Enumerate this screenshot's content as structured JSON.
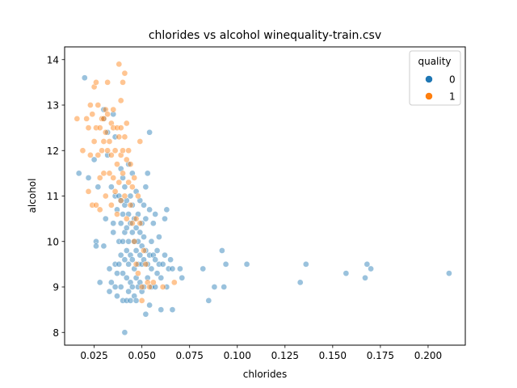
{
  "chart_data": {
    "type": "scatter",
    "title": "chlorides vs alcohol winequality-train.csv",
    "xlabel": "chlorides",
    "ylabel": "alcohol",
    "xlim": [
      0.0095,
      0.2195
    ],
    "ylim": [
      7.72,
      14.28
    ],
    "xticks": [
      0.025,
      0.05,
      0.075,
      0.1,
      0.125,
      0.15,
      0.175,
      0.2
    ],
    "xtick_labels": [
      "0.025",
      "0.050",
      "0.075",
      "0.100",
      "0.125",
      "0.150",
      "0.175",
      "0.200"
    ],
    "yticks": [
      8,
      9,
      10,
      11,
      12,
      13,
      14
    ],
    "ytick_labels": [
      "8",
      "9",
      "10",
      "11",
      "12",
      "13",
      "14"
    ],
    "grid": false,
    "legend": {
      "title": "quality",
      "placement": "top-right"
    },
    "series": [
      {
        "name": "0",
        "color": "#1f77b4",
        "points": [
          [
            0.017,
            11.5
          ],
          [
            0.02,
            13.6
          ],
          [
            0.022,
            11.4
          ],
          [
            0.025,
            11.8
          ],
          [
            0.026,
            10.0
          ],
          [
            0.026,
            9.9
          ],
          [
            0.027,
            11.2
          ],
          [
            0.028,
            9.1
          ],
          [
            0.03,
            12.9
          ],
          [
            0.03,
            12.7
          ],
          [
            0.03,
            9.9
          ],
          [
            0.031,
            10.5
          ],
          [
            0.032,
            12.4
          ],
          [
            0.032,
            11.9
          ],
          [
            0.033,
            8.9
          ],
          [
            0.033,
            9.4
          ],
          [
            0.034,
            11.2
          ],
          [
            0.034,
            9.1
          ],
          [
            0.035,
            12.8
          ],
          [
            0.035,
            10.4
          ],
          [
            0.035,
            10.2
          ],
          [
            0.036,
            12.3
          ],
          [
            0.036,
            11.0
          ],
          [
            0.036,
            9.5
          ],
          [
            0.036,
            9.0
          ],
          [
            0.037,
            10.7
          ],
          [
            0.037,
            9.3
          ],
          [
            0.037,
            8.8
          ],
          [
            0.038,
            11.0
          ],
          [
            0.038,
            10.0
          ],
          [
            0.038,
            9.5
          ],
          [
            0.039,
            11.6
          ],
          [
            0.039,
            10.9
          ],
          [
            0.039,
            10.4
          ],
          [
            0.039,
            9.7
          ],
          [
            0.039,
            9.0
          ],
          [
            0.04,
            11.4
          ],
          [
            0.04,
            10.6
          ],
          [
            0.04,
            10.0
          ],
          [
            0.04,
            9.3
          ],
          [
            0.04,
            8.7
          ],
          [
            0.041,
            11.2
          ],
          [
            0.041,
            10.8
          ],
          [
            0.041,
            10.2
          ],
          [
            0.041,
            9.6
          ],
          [
            0.041,
            8.0
          ],
          [
            0.042,
            10.9
          ],
          [
            0.042,
            10.3
          ],
          [
            0.042,
            9.8
          ],
          [
            0.042,
            9.2
          ],
          [
            0.042,
            8.7
          ],
          [
            0.043,
            11.7
          ],
          [
            0.043,
            10.6
          ],
          [
            0.043,
            10.0
          ],
          [
            0.043,
            9.5
          ],
          [
            0.043,
            8.9
          ],
          [
            0.044,
            11.0
          ],
          [
            0.044,
            10.4
          ],
          [
            0.044,
            9.7
          ],
          [
            0.044,
            9.1
          ],
          [
            0.044,
            8.7
          ],
          [
            0.045,
            11.5
          ],
          [
            0.045,
            10.8
          ],
          [
            0.045,
            10.2
          ],
          [
            0.045,
            9.6
          ],
          [
            0.045,
            9.0
          ],
          [
            0.046,
            10.5
          ],
          [
            0.046,
            10.0
          ],
          [
            0.046,
            9.4
          ],
          [
            0.046,
            8.8
          ],
          [
            0.047,
            11.1
          ],
          [
            0.047,
            10.3
          ],
          [
            0.047,
            9.8
          ],
          [
            0.047,
            9.2
          ],
          [
            0.047,
            8.7
          ],
          [
            0.048,
            10.6
          ],
          [
            0.048,
            10.0
          ],
          [
            0.048,
            9.5
          ],
          [
            0.048,
            9.0
          ],
          [
            0.049,
            10.9
          ],
          [
            0.049,
            10.2
          ],
          [
            0.049,
            9.7
          ],
          [
            0.049,
            9.1
          ],
          [
            0.05,
            10.4
          ],
          [
            0.05,
            9.9
          ],
          [
            0.05,
            9.5
          ],
          [
            0.05,
            8.9
          ],
          [
            0.051,
            10.8
          ],
          [
            0.051,
            10.1
          ],
          [
            0.051,
            9.6
          ],
          [
            0.051,
            9.0
          ],
          [
            0.052,
            11.2
          ],
          [
            0.052,
            10.5
          ],
          [
            0.052,
            9.8
          ],
          [
            0.052,
            8.4
          ],
          [
            0.053,
            11.5
          ],
          [
            0.053,
            9.5
          ],
          [
            0.053,
            9.2
          ],
          [
            0.054,
            12.4
          ],
          [
            0.054,
            10.7
          ],
          [
            0.054,
            9.7
          ],
          [
            0.054,
            8.6
          ],
          [
            0.055,
            10.0
          ],
          [
            0.055,
            9.4
          ],
          [
            0.055,
            9.0
          ],
          [
            0.056,
            10.4
          ],
          [
            0.056,
            9.7
          ],
          [
            0.057,
            10.6
          ],
          [
            0.057,
            9.6
          ],
          [
            0.057,
            9.0
          ],
          [
            0.058,
            9.8
          ],
          [
            0.058,
            9.3
          ],
          [
            0.059,
            10.1
          ],
          [
            0.059,
            9.5
          ],
          [
            0.06,
            8.5
          ],
          [
            0.06,
            9.2
          ],
          [
            0.061,
            9.5
          ],
          [
            0.062,
            10.5
          ],
          [
            0.062,
            9.7
          ],
          [
            0.063,
            10.7
          ],
          [
            0.063,
            9.0
          ],
          [
            0.064,
            9.4
          ],
          [
            0.065,
            9.6
          ],
          [
            0.066,
            8.5
          ],
          [
            0.066,
            9.4
          ],
          [
            0.07,
            9.4
          ],
          [
            0.071,
            9.2
          ],
          [
            0.082,
            9.4
          ],
          [
            0.085,
            8.7
          ],
          [
            0.088,
            9.0
          ],
          [
            0.092,
            9.8
          ],
          [
            0.093,
            9.0
          ],
          [
            0.094,
            9.5
          ],
          [
            0.105,
            9.5
          ],
          [
            0.133,
            9.1
          ],
          [
            0.136,
            9.5
          ],
          [
            0.157,
            9.3
          ],
          [
            0.167,
            9.2
          ],
          [
            0.168,
            9.5
          ],
          [
            0.17,
            9.4
          ],
          [
            0.211,
            9.3
          ]
        ]
      },
      {
        "name": "1",
        "color": "#ff7f0e",
        "points": [
          [
            0.016,
            12.7
          ],
          [
            0.019,
            12.0
          ],
          [
            0.021,
            12.7
          ],
          [
            0.022,
            11.1
          ],
          [
            0.022,
            12.5
          ],
          [
            0.023,
            13.0
          ],
          [
            0.023,
            11.9
          ],
          [
            0.024,
            12.8
          ],
          [
            0.024,
            10.8
          ],
          [
            0.025,
            13.4
          ],
          [
            0.025,
            12.2
          ],
          [
            0.026,
            13.5
          ],
          [
            0.026,
            12.5
          ],
          [
            0.026,
            10.8
          ],
          [
            0.027,
            11.9
          ],
          [
            0.027,
            13.0
          ],
          [
            0.028,
            12.5
          ],
          [
            0.028,
            11.4
          ],
          [
            0.028,
            10.7
          ],
          [
            0.029,
            12.7
          ],
          [
            0.029,
            12.0
          ],
          [
            0.03,
            12.7
          ],
          [
            0.03,
            12.2
          ],
          [
            0.03,
            11.5
          ],
          [
            0.031,
            12.9
          ],
          [
            0.031,
            12.4
          ],
          [
            0.031,
            11.0
          ],
          [
            0.032,
            13.5
          ],
          [
            0.032,
            12.8
          ],
          [
            0.032,
            12.0
          ],
          [
            0.033,
            12.2
          ],
          [
            0.033,
            11.5
          ],
          [
            0.034,
            12.6
          ],
          [
            0.034,
            11.9
          ],
          [
            0.034,
            10.8
          ],
          [
            0.035,
            12.9
          ],
          [
            0.035,
            12.5
          ],
          [
            0.035,
            11.4
          ],
          [
            0.036,
            12.0
          ],
          [
            0.036,
            11.1
          ],
          [
            0.037,
            12.5
          ],
          [
            0.037,
            11.7
          ],
          [
            0.037,
            10.6
          ],
          [
            0.038,
            13.9
          ],
          [
            0.038,
            12.3
          ],
          [
            0.038,
            11.3
          ],
          [
            0.039,
            13.1
          ],
          [
            0.039,
            12.5
          ],
          [
            0.039,
            11.9
          ],
          [
            0.039,
            10.9
          ],
          [
            0.04,
            13.5
          ],
          [
            0.04,
            12.0
          ],
          [
            0.04,
            11.5
          ],
          [
            0.041,
            13.7
          ],
          [
            0.041,
            12.3
          ],
          [
            0.041,
            11.0
          ],
          [
            0.042,
            12.6
          ],
          [
            0.042,
            11.8
          ],
          [
            0.042,
            10.5
          ],
          [
            0.043,
            12.0
          ],
          [
            0.043,
            11.3
          ],
          [
            0.044,
            11.7
          ],
          [
            0.044,
            10.8
          ],
          [
            0.045,
            11.2
          ],
          [
            0.045,
            10.4
          ],
          [
            0.046,
            11.4
          ],
          [
            0.046,
            10.0
          ],
          [
            0.047,
            10.5
          ],
          [
            0.047,
            9.5
          ],
          [
            0.048,
            11.0
          ],
          [
            0.048,
            9.3
          ],
          [
            0.049,
            12.2
          ],
          [
            0.049,
            10.4
          ],
          [
            0.05,
            9.0
          ],
          [
            0.05,
            8.7
          ],
          [
            0.051,
            9.8
          ],
          [
            0.052,
            9.5
          ],
          [
            0.053,
            9.1
          ],
          [
            0.054,
            9.0
          ],
          [
            0.056,
            9.1
          ],
          [
            0.061,
            9.0
          ],
          [
            0.067,
            9.1
          ]
        ]
      }
    ]
  }
}
